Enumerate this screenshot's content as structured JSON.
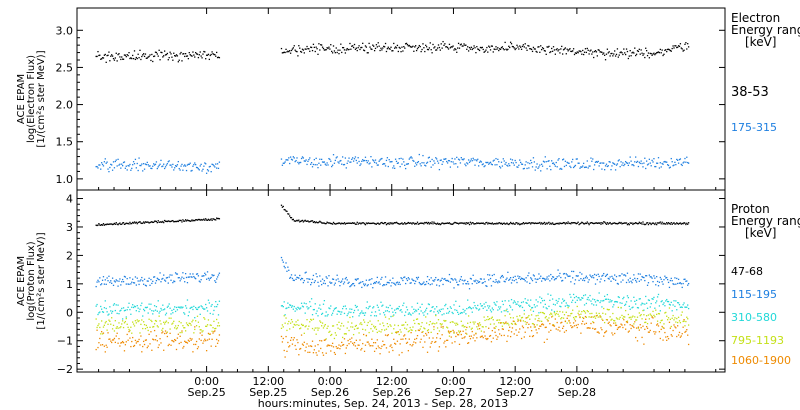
{
  "chart_data": [
    {
      "type": "scatter",
      "ylabel_lines": [
        "ACE EPAM",
        "log(Electron Flux)",
        "[1/(cm²s ster MeV)]"
      ],
      "ylim": [
        0.85,
        3.3
      ],
      "yticks": [
        1.0,
        1.5,
        2.0,
        2.5,
        3.0
      ],
      "ytick_labels": [
        "1.0",
        "1.5",
        "2.0",
        "2.5",
        "3.0"
      ],
      "legend_title_lines": [
        "Electron",
        "Energy ranges",
        "[keV]"
      ],
      "gap": [
        0.1,
        0.6
      ],
      "series": [
        {
          "name": "38-53",
          "color": "#000000",
          "points": [
            [
              -0.9,
              2.65
            ],
            [
              0.1,
              2.68
            ],
            [
              0.6,
              2.72
            ],
            [
              1.0,
              2.76
            ],
            [
              1.5,
              2.78
            ],
            [
              2.0,
              2.79
            ],
            [
              2.3,
              2.76
            ],
            [
              2.6,
              2.77
            ],
            [
              3.0,
              2.72
            ],
            [
              3.3,
              2.68
            ],
            [
              3.7,
              2.72
            ],
            [
              3.9,
              2.82
            ]
          ]
        },
        {
          "name": "175-315",
          "color": "#1e7fe0",
          "points": [
            [
              -0.9,
              1.2
            ],
            [
              0.1,
              1.18
            ],
            [
              0.6,
              1.24
            ],
            [
              1.0,
              1.24
            ],
            [
              1.5,
              1.23
            ],
            [
              2.0,
              1.24
            ],
            [
              2.5,
              1.22
            ],
            [
              3.0,
              1.2
            ],
            [
              3.5,
              1.22
            ],
            [
              3.9,
              1.24
            ]
          ]
        }
      ]
    },
    {
      "type": "scatter",
      "ylabel_lines": [
        "ACE EPAM",
        "log(Proton Flux)",
        "[1/(cm²s ster MeV)]"
      ],
      "ylim": [
        -2.1,
        4.3
      ],
      "yticks": [
        -2,
        -1,
        0,
        1,
        2,
        3,
        4
      ],
      "ytick_labels": [
        "−2",
        "−1",
        "0",
        "1",
        "2",
        "3",
        "4"
      ],
      "legend_title_lines": [
        "Proton",
        "Energy ranges",
        "[keV]"
      ],
      "gap": [
        0.1,
        0.6
      ],
      "series": [
        {
          "name": "47-68",
          "color": "#000000",
          "points": [
            [
              -0.9,
              3.1
            ],
            [
              0.1,
              3.3
            ],
            [
              0.6,
              3.8
            ],
            [
              0.7,
              3.25
            ],
            [
              1.0,
              3.15
            ],
            [
              2.0,
              3.15
            ],
            [
              3.0,
              3.15
            ],
            [
              3.9,
              3.15
            ]
          ]
        },
        {
          "name": "115-195",
          "color": "#1e7fe0",
          "points": [
            [
              -0.9,
              1.05
            ],
            [
              0.1,
              1.3
            ],
            [
              0.6,
              1.9
            ],
            [
              0.7,
              1.3
            ],
            [
              1.0,
              1.1
            ],
            [
              2.0,
              1.12
            ],
            [
              3.0,
              1.25
            ],
            [
              3.9,
              1.12
            ]
          ]
        },
        {
          "name": "310-580",
          "color": "#22d8d8",
          "points": [
            [
              -0.9,
              0.1
            ],
            [
              0.1,
              0.15
            ],
            [
              0.6,
              0.3
            ],
            [
              1.0,
              0.1
            ],
            [
              2.0,
              0.1
            ],
            [
              3.0,
              0.45
            ],
            [
              3.9,
              0.3
            ]
          ]
        },
        {
          "name": "795-1193",
          "color": "#c4e018",
          "points": [
            [
              -0.9,
              -0.45
            ],
            [
              0.1,
              -0.4
            ],
            [
              0.6,
              -0.3
            ],
            [
              1.0,
              -0.55
            ],
            [
              2.0,
              -0.45
            ],
            [
              3.0,
              -0.05
            ],
            [
              3.9,
              -0.2
            ]
          ]
        },
        {
          "name": "1060-1900",
          "color": "#ee8a00",
          "points": [
            [
              -0.9,
              -1.0
            ],
            [
              0.1,
              -0.95
            ],
            [
              0.6,
              -1.1
            ],
            [
              1.0,
              -1.2
            ],
            [
              2.0,
              -0.85
            ],
            [
              3.0,
              -0.4
            ],
            [
              3.9,
              -0.7
            ]
          ]
        }
      ]
    }
  ],
  "xaxis": {
    "ticks": [
      {
        "time": "0:00",
        "date": "Sep.25"
      },
      {
        "time": "12:00",
        "date": "Sep.25"
      },
      {
        "time": "0:00",
        "date": "Sep.26"
      },
      {
        "time": "12:00",
        "date": "Sep.26"
      },
      {
        "time": "0:00",
        "date": "Sep.27"
      },
      {
        "time": "12:00",
        "date": "Sep.27"
      },
      {
        "time": "0:00",
        "date": "Sep.28"
      }
    ],
    "title": "hours:minutes, Sep. 24, 2013 - Sep. 28, 2013"
  }
}
